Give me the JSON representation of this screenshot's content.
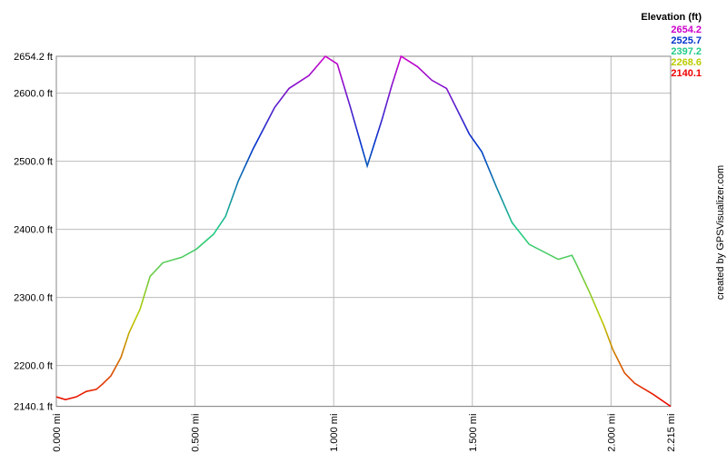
{
  "chart_data": {
    "type": "line",
    "title": "Elevation (ft)",
    "credit": "created by GPSVisualizer.com",
    "x": [
      0,
      0.033,
      0.072,
      0.108,
      0.144,
      0.167,
      0.197,
      0.233,
      0.262,
      0.302,
      0.338,
      0.384,
      0.452,
      0.505,
      0.567,
      0.61,
      0.656,
      0.708,
      0.787,
      0.839,
      0.911,
      0.97,
      1.013,
      1.059,
      1.121,
      1.174,
      1.21,
      1.243,
      1.302,
      1.354,
      1.407,
      1.489,
      1.534,
      1.587,
      1.643,
      1.705,
      1.81,
      1.859,
      1.875,
      1.921,
      1.974,
      2.007,
      2.049,
      2.085,
      2.151,
      2.215
    ],
    "values": [
      2154,
      2150,
      2154,
      2162,
      2165,
      2173,
      2185,
      2212,
      2248,
      2283,
      2331,
      2351,
      2359,
      2371,
      2393,
      2419,
      2471,
      2517,
      2579,
      2607,
      2626,
      2654.2,
      2643,
      2581,
      2493,
      2561,
      2612,
      2654.2,
      2639,
      2619,
      2607,
      2540,
      2514,
      2462,
      2410,
      2378,
      2356,
      2362,
      2349,
      2309,
      2259,
      2223,
      2189,
      2174,
      2158,
      2140.1
    ],
    "xlim": [
      0,
      2.215
    ],
    "ylim": [
      2140.1,
      2654.2
    ],
    "xticks": [
      {
        "value": 0,
        "label": "0.000 mi"
      },
      {
        "value": 0.5,
        "label": "0.500 mi"
      },
      {
        "value": 1,
        "label": "1.000 mi"
      },
      {
        "value": 1.5,
        "label": "1.500 mi"
      },
      {
        "value": 2,
        "label": "2.000 mi"
      },
      {
        "value": 2.215,
        "label": "2.215 mi"
      }
    ],
    "yticks": [
      {
        "value": 2140.1,
        "label": "2140.1 ft"
      },
      {
        "value": 2200,
        "label": "2200.0 ft"
      },
      {
        "value": 2300,
        "label": "2300.0 ft"
      },
      {
        "value": 2400,
        "label": "2400.0 ft"
      },
      {
        "value": 2500,
        "label": "2500.0 ft"
      },
      {
        "value": 2600,
        "label": "2600.0 ft"
      },
      {
        "value": 2654.2,
        "label": "2654.2 ft"
      }
    ],
    "grid": true,
    "color_scale": [
      {
        "value": 2654.2,
        "color": "#cc00cc"
      },
      {
        "value": 2525.7,
        "color": "#0033cc"
      },
      {
        "value": 2397.2,
        "color": "#22cc88"
      },
      {
        "value": 2268.6,
        "color": "#bbcc00"
      },
      {
        "value": 2140.1,
        "color": "#ee0000"
      }
    ]
  }
}
